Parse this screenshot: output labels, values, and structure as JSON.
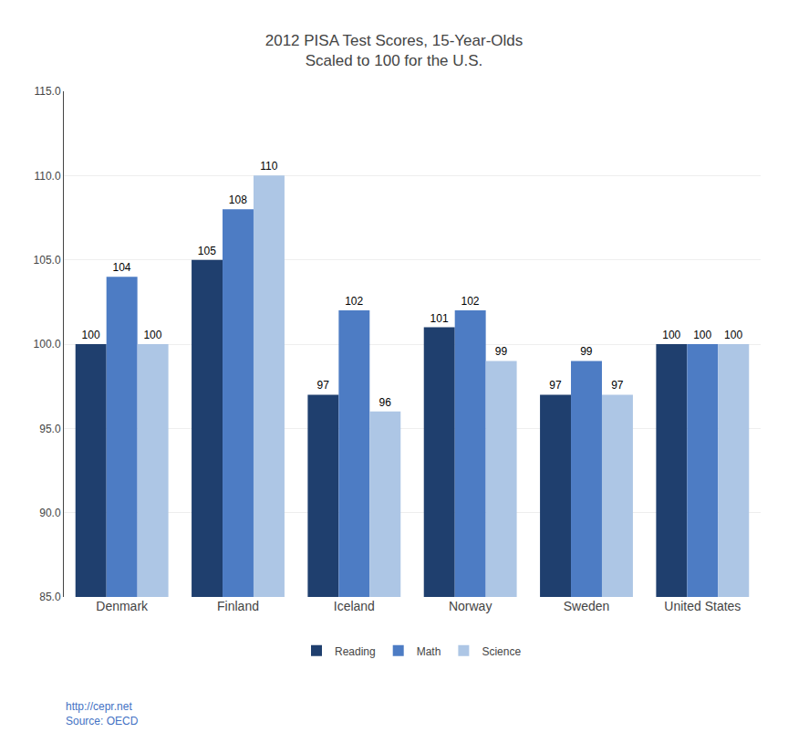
{
  "chart_data": {
    "type": "bar",
    "title": "2012 PISA Test Scores, 15-Year-Olds\nScaled to 100 for the U.S.",
    "categories": [
      "Denmark",
      "Finland",
      "Iceland",
      "Norway",
      "Sweden",
      "United States"
    ],
    "series": [
      {
        "name": "Reading",
        "color": "#1f3f6e",
        "values": [
          100,
          105,
          97,
          101,
          97,
          100
        ]
      },
      {
        "name": "Math",
        "color": "#4d7cc4",
        "values": [
          104,
          108,
          102,
          102,
          99,
          100
        ]
      },
      {
        "name": "Science",
        "color": "#adc6e5",
        "values": [
          100,
          110,
          96,
          99,
          97,
          100
        ]
      }
    ],
    "ylim": [
      85.0,
      115.0
    ],
    "yticks": [
      {
        "value": 85.0,
        "label": "85.0"
      },
      {
        "value": 90.0,
        "label": "90.0"
      },
      {
        "value": 95.0,
        "label": "95.0"
      },
      {
        "value": 100.0,
        "label": "100.0"
      },
      {
        "value": 105.0,
        "label": "105.0"
      },
      {
        "value": 110.0,
        "label": "110.0"
      },
      {
        "value": 115.0,
        "label": "115.0"
      }
    ],
    "grid": true,
    "legend": "bottom",
    "data_labels": true,
    "annotations": [
      {
        "text": "http://cepr.net\nSource: OECD",
        "color": "#4472c4"
      }
    ]
  }
}
